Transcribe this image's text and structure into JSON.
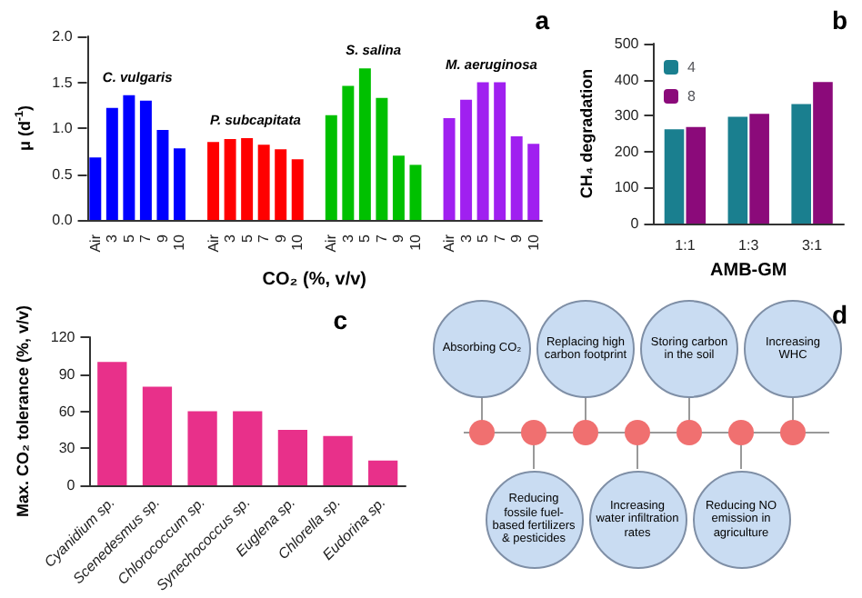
{
  "chart_data": [
    {
      "type": "bar",
      "annotations": [
        "a"
      ],
      "xlabel": "CO₂ (%, v/v)",
      "ylabel": "μ (d$^{-1}$)",
      "categories": [
        "Air",
        "3",
        "5",
        "7",
        "9",
        "10",
        null,
        "Air",
        "3",
        "5",
        "7",
        "9",
        "10",
        null,
        "Air",
        "3",
        "5",
        "7",
        "9",
        "10",
        null,
        "Air",
        "3",
        "5",
        "7",
        "9",
        "10"
      ],
      "ylim": [
        0,
        2
      ],
      "yticks": [
        {
          "value": 0,
          "label": "0.0"
        },
        {
          "value": 0.5,
          "label": "0.5"
        },
        {
          "value": 1,
          "label": "1.0"
        },
        {
          "value": 1.5,
          "label": "1.5"
        },
        {
          "value": 2,
          "label": "2.0"
        }
      ],
      "grid": false,
      "legend": false,
      "series": [
        {
          "name": "C. vulgaris",
          "color": "#0000ff",
          "values": [
            0.68,
            1.22,
            1.36,
            1.3,
            0.98,
            0.78,
            null,
            null,
            null,
            null,
            null,
            null,
            null,
            null,
            null,
            null,
            null,
            null,
            null,
            null,
            null,
            null,
            null,
            null,
            null,
            null,
            null
          ]
        },
        {
          "name": "P. subcapitata",
          "color": "#ff0000",
          "values": [
            null,
            null,
            null,
            null,
            null,
            null,
            null,
            0.85,
            0.88,
            0.89,
            0.82,
            0.77,
            0.66,
            null,
            null,
            null,
            null,
            null,
            null,
            null,
            null,
            null,
            null,
            null,
            null,
            null,
            null
          ]
        },
        {
          "name": "S. salina",
          "color": "#00c000",
          "values": [
            null,
            null,
            null,
            null,
            null,
            null,
            null,
            null,
            null,
            null,
            null,
            null,
            null,
            null,
            1.14,
            1.46,
            1.65,
            1.33,
            0.7,
            0.6,
            null,
            null,
            null,
            null,
            null,
            null,
            null
          ]
        },
        {
          "name": "M. aeruginosa",
          "color": "#a020f0",
          "values": [
            null,
            null,
            null,
            null,
            null,
            null,
            null,
            null,
            null,
            null,
            null,
            null,
            null,
            null,
            null,
            null,
            null,
            null,
            null,
            null,
            null,
            1.11,
            1.31,
            1.5,
            1.5,
            0.91,
            0.83
          ]
        }
      ]
    },
    {
      "type": "bar",
      "annotations": [
        "b"
      ],
      "xlabel": "AMB-GM",
      "ylabel": "CH₄ degradation",
      "categories": [
        "1:1",
        "1:3",
        "3:1"
      ],
      "ylim": [
        0,
        500
      ],
      "yticks": [
        0,
        100,
        200,
        300,
        400,
        500
      ],
      "grid": false,
      "legend": "top left",
      "series": [
        {
          "name": "4",
          "color": "#1a7f8f",
          "values": [
            262,
            297,
            332
          ]
        },
        {
          "name": "8",
          "color": "#8b0a7a",
          "values": [
            268,
            305,
            393
          ]
        }
      ]
    },
    {
      "type": "bar",
      "annotations": [
        "c"
      ],
      "ylabel": "Max. CO₂ tolerance (%, v/v)",
      "categories": [
        "Cyanidium sp.",
        "Scenedesmus sp.",
        "Chlorococcum sp.",
        "Synechococcus sp.",
        "Euglena sp.",
        "Chlorella sp.",
        "Eudorina sp."
      ],
      "ylim": [
        0,
        120
      ],
      "yticks": [
        0,
        30,
        60,
        90,
        120
      ],
      "grid": false,
      "legend": false,
      "series": [
        {
          "color": "#e8308a",
          "values": [
            100,
            80,
            60,
            60,
            45,
            40,
            20
          ]
        }
      ]
    },
    {
      "type": "other",
      "annotations": [
        "d",
        "Absorbing CO₂",
        "Reducing fossile fuel-based fertilizers & pesticides",
        "Replacing high carbon footprint",
        "Increasing water infiltration rates",
        "Storing carbon in the soil",
        "Reducing NO emission in agriculture",
        "Increasing WHC"
      ]
    }
  ]
}
